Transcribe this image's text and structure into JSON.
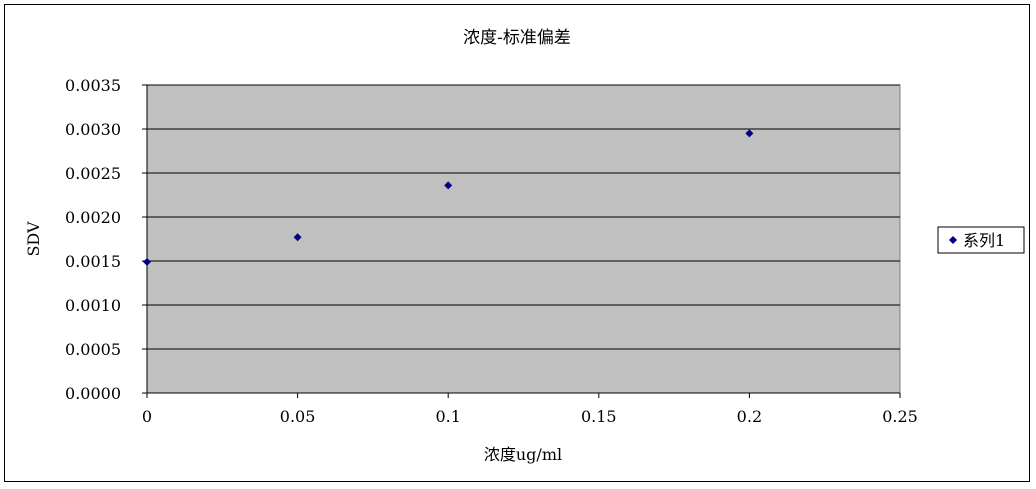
{
  "chart_data": {
    "type": "scatter",
    "title": "浓度-标准偏差",
    "xlabel": "浓度ug/ml",
    "ylabel": "SDV",
    "xlim": [
      0,
      0.25
    ],
    "ylim": [
      0,
      0.0035
    ],
    "x_ticks": [
      "0",
      "0.05",
      "0.1",
      "0.15",
      "0.2",
      "0.25"
    ],
    "y_ticks": [
      "0.0000",
      "0.0005",
      "0.0010",
      "0.0015",
      "0.0020",
      "0.0025",
      "0.0030",
      "0.0035"
    ],
    "grid": "horizontal",
    "legend_position": "right",
    "plot_background": "#c0c0c0",
    "marker_color": "#000080",
    "series": [
      {
        "name": "系列1",
        "x": [
          0,
          0.05,
          0.1,
          0.2
        ],
        "y": [
          0.00149,
          0.00177,
          0.00236,
          0.00295
        ]
      }
    ]
  }
}
